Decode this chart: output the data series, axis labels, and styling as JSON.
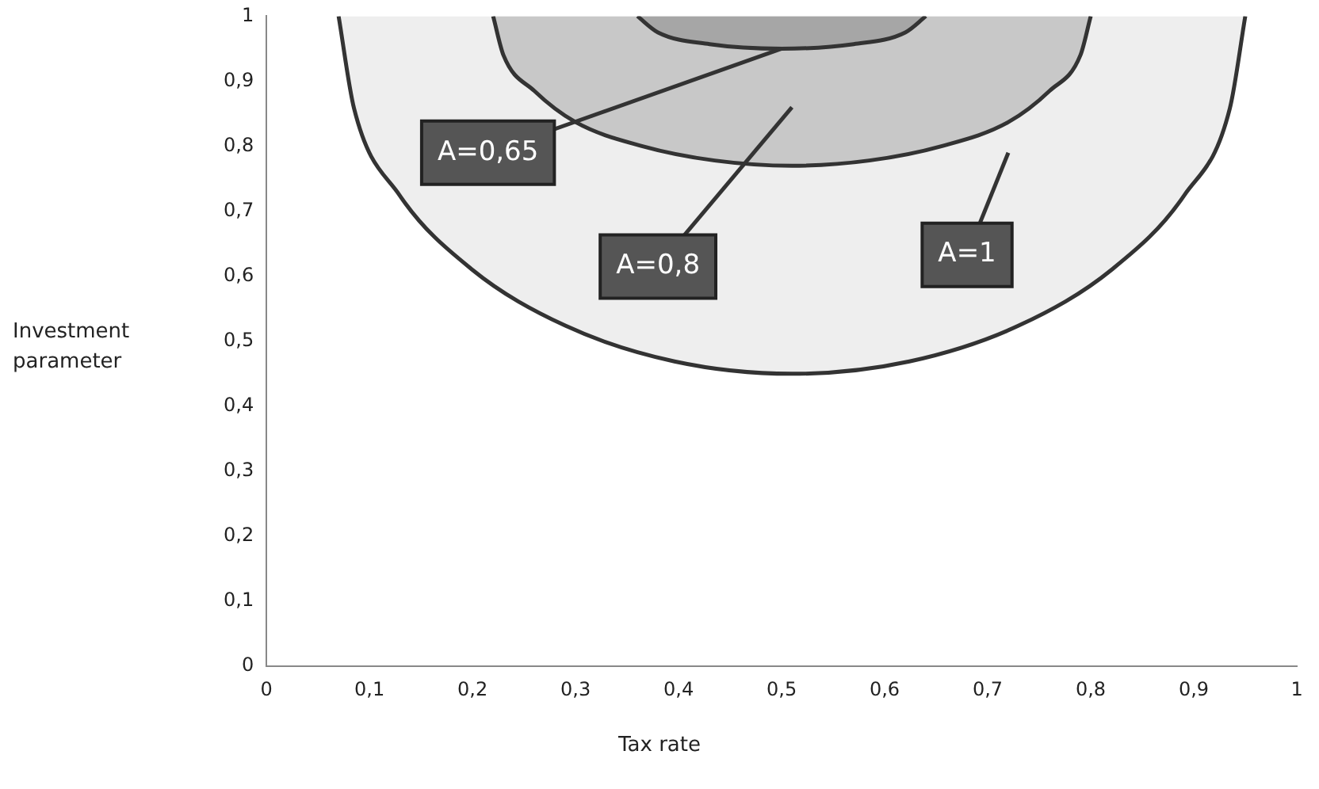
{
  "chart_data": {
    "type": "area",
    "xlabel": "Tax rate",
    "ylabel": "Investment parameter",
    "marker": "none",
    "xlim": [
      0,
      1
    ],
    "ylim": [
      0,
      1
    ],
    "xticks": [
      0,
      {
        "value": 0.1,
        "label": "0,1"
      },
      {
        "value": 0.2,
        "label": "0,2"
      },
      {
        "value": 0.3,
        "label": "0,3"
      },
      {
        "value": 0.4,
        "label": "0,4"
      },
      {
        "value": 0.5,
        "label": "0,5"
      },
      {
        "value": 0.6,
        "label": "0,6"
      },
      {
        "value": 0.7,
        "label": "0,7"
      },
      {
        "value": 0.8,
        "label": "0,8"
      },
      {
        "value": 0.9,
        "label": "0,9"
      },
      1
    ],
    "yticks": [
      0,
      {
        "value": 0.1,
        "label": "0,1"
      },
      {
        "value": 0.2,
        "label": "0,2"
      },
      {
        "value": 0.3,
        "label": "0,3"
      },
      {
        "value": 0.4,
        "label": "0,4"
      },
      {
        "value": 0.5,
        "label": "0,5"
      },
      {
        "value": 0.6,
        "label": "0,6"
      },
      {
        "value": 0.7,
        "label": "0,7"
      },
      {
        "value": 0.8,
        "label": "0,8"
      },
      {
        "value": 0.9,
        "label": "0,9"
      },
      1
    ],
    "series": [
      {
        "color": "#eeeeee",
        "x": [
          0.07,
          0.085,
          0.129,
          0.199,
          0.29,
          0.396,
          0.51,
          0.624,
          0.73,
          0.821,
          0.891,
          0.935,
          0.95
        ],
        "values": [
          1.0,
          0.858,
          0.725,
          0.611,
          0.524,
          0.469,
          0.45,
          0.469,
          0.524,
          0.611,
          0.725,
          0.858,
          1.0
        ]
      },
      {
        "color": "#c8c8c8",
        "x": [
          0.22,
          0.23,
          0.26,
          0.3,
          0.365,
          0.435,
          0.51,
          0.585,
          0.655,
          0.72,
          0.76,
          0.79,
          0.8
        ],
        "values": [
          1.0,
          0.94,
          0.885,
          0.837,
          0.8,
          0.778,
          0.77,
          0.778,
          0.8,
          0.837,
          0.885,
          0.94,
          1.0
        ]
      },
      {
        "color": "#a6a6a6",
        "x": [
          0.36,
          0.38,
          0.43,
          0.5,
          0.57,
          0.62,
          0.64
        ],
        "values": [
          1.0,
          0.975,
          0.957,
          0.95,
          0.957,
          0.975,
          1.0
        ]
      }
    ],
    "annotations": [
      {
        "text": "A=0,65",
        "x": 0.5,
        "y": 0.95
      },
      "A=0,8",
      "A=1"
    ]
  }
}
